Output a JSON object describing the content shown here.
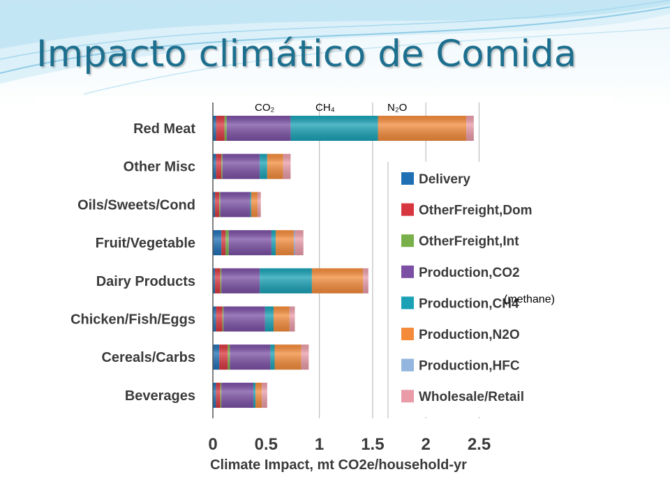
{
  "slide": {
    "title": "Impacto climático de Comida"
  },
  "annotations": {
    "co2": "CO₂",
    "ch4": "CH₄",
    "n2o": "N₂O",
    "methane_note": "(methane)"
  },
  "colors": {
    "title": "#1c6f8e",
    "axis": "#555555",
    "grid": "#bdbdbd"
  },
  "chart_data": {
    "type": "bar",
    "orientation": "horizontal",
    "stacked": true,
    "categories": [
      "Red Meat",
      "Other Misc",
      "Oils/Sweets/Cond",
      "Fruit/Vegetable",
      "Dairy Products",
      "Chicken/Fish/Eggs",
      "Cereals/Carbs",
      "Beverages"
    ],
    "series": [
      {
        "name": "Delivery",
        "color": "#1f6fb4",
        "values": [
          0.03,
          0.03,
          0.02,
          0.08,
          0.02,
          0.03,
          0.06,
          0.03
        ]
      },
      {
        "name": "OtherFreight,Dom",
        "color": "#d8363f",
        "values": [
          0.08,
          0.05,
          0.04,
          0.04,
          0.05,
          0.06,
          0.08,
          0.04
        ]
      },
      {
        "name": "OtherFreight,Int",
        "color": "#79b04a",
        "values": [
          0.02,
          0.01,
          0.01,
          0.03,
          0.01,
          0.01,
          0.02,
          0.01
        ]
      },
      {
        "name": "Production,CO2",
        "color": "#7b50a4",
        "values": [
          0.6,
          0.35,
          0.28,
          0.4,
          0.36,
          0.39,
          0.38,
          0.3
        ]
      },
      {
        "name": "Production,CH4",
        "color": "#1aa1b5",
        "values": [
          0.82,
          0.07,
          0.01,
          0.04,
          0.49,
          0.08,
          0.04,
          0.02
        ]
      },
      {
        "name": "Production,N2O",
        "color": "#f38b3b",
        "values": [
          0.83,
          0.15,
          0.06,
          0.17,
          0.48,
          0.15,
          0.25,
          0.06
        ]
      },
      {
        "name": "Production,HFC",
        "color": "#92b6dd",
        "values": [
          0.0,
          0.0,
          0.0,
          0.01,
          0.0,
          0.0,
          0.0,
          0.0
        ]
      },
      {
        "name": "Wholesale/Retail",
        "color": "#e99ba8",
        "values": [
          0.07,
          0.07,
          0.03,
          0.08,
          0.05,
          0.05,
          0.07,
          0.05
        ]
      }
    ],
    "xlabel": "Climate Impact, mt CO2e/household-yr",
    "ylabel": "",
    "xlim": [
      0,
      2.5
    ],
    "xticks": [
      "0",
      "0.5",
      "1",
      "1.5",
      "2",
      "2.5"
    ],
    "grid": true,
    "legend_position": "right"
  }
}
